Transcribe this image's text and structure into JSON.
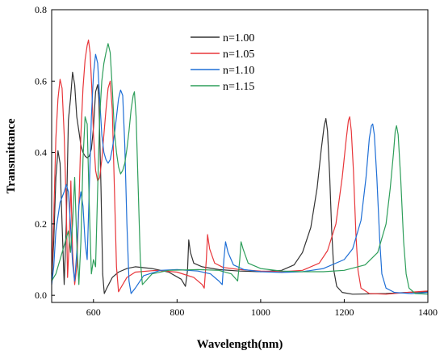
{
  "chart_data": {
    "type": "line",
    "title": "",
    "xlabel": "Wavelength(nm)",
    "ylabel": "Transmittance",
    "xlim": [
      500,
      1400
    ],
    "ylim": [
      -0.02,
      0.8
    ],
    "xticks": [
      600,
      800,
      1000,
      1200,
      1400
    ],
    "yticks": [
      0.0,
      0.2,
      0.4,
      0.6,
      0.8
    ],
    "xtick_labels": [
      "600",
      "800",
      "1000",
      "1200",
      "1400"
    ],
    "ytick_labels": [
      "0.0",
      "0.2",
      "0.4",
      "0.6",
      "0.8"
    ],
    "grid": false,
    "legend_position": "top-center",
    "series": [
      {
        "name": "n=1.00",
        "color": "#333333",
        "points": [
          [
            500,
            0.04
          ],
          [
            505,
            0.15
          ],
          [
            510,
            0.33
          ],
          [
            515,
            0.405
          ],
          [
            520,
            0.37
          ],
          [
            525,
            0.2
          ],
          [
            530,
            0.03
          ],
          [
            535,
            0.2
          ],
          [
            540,
            0.49
          ],
          [
            545,
            0.55
          ],
          [
            550,
            0.625
          ],
          [
            555,
            0.59
          ],
          [
            560,
            0.5
          ],
          [
            565,
            0.46
          ],
          [
            570,
            0.42
          ],
          [
            575,
            0.4
          ],
          [
            580,
            0.39
          ],
          [
            585,
            0.385
          ],
          [
            590,
            0.39
          ],
          [
            595,
            0.41
          ],
          [
            600,
            0.47
          ],
          [
            605,
            0.57
          ],
          [
            610,
            0.59
          ],
          [
            613,
            0.55
          ],
          [
            618,
            0.3
          ],
          [
            622,
            0.06
          ],
          [
            626,
            0.005
          ],
          [
            632,
            0.02
          ],
          [
            645,
            0.05
          ],
          [
            660,
            0.065
          ],
          [
            680,
            0.075
          ],
          [
            700,
            0.08
          ],
          [
            740,
            0.075
          ],
          [
            780,
            0.065
          ],
          [
            810,
            0.045
          ],
          [
            820,
            0.025
          ],
          [
            825,
            0.07
          ],
          [
            828,
            0.155
          ],
          [
            832,
            0.12
          ],
          [
            840,
            0.09
          ],
          [
            860,
            0.08
          ],
          [
            900,
            0.072
          ],
          [
            950,
            0.068
          ],
          [
            1000,
            0.066
          ],
          [
            1050,
            0.07
          ],
          [
            1080,
            0.085
          ],
          [
            1100,
            0.12
          ],
          [
            1120,
            0.19
          ],
          [
            1135,
            0.3
          ],
          [
            1145,
            0.41
          ],
          [
            1152,
            0.475
          ],
          [
            1156,
            0.495
          ],
          [
            1160,
            0.46
          ],
          [
            1165,
            0.34
          ],
          [
            1170,
            0.18
          ],
          [
            1175,
            0.07
          ],
          [
            1182,
            0.025
          ],
          [
            1195,
            0.008
          ],
          [
            1220,
            0.003
          ],
          [
            1300,
            0.005
          ],
          [
            1350,
            0.008
          ],
          [
            1400,
            0.01
          ]
        ]
      },
      {
        "name": "n=1.05",
        "color": "#e8363a",
        "points": [
          [
            500,
            0.06
          ],
          [
            505,
            0.22
          ],
          [
            510,
            0.44
          ],
          [
            515,
            0.55
          ],
          [
            520,
            0.605
          ],
          [
            525,
            0.58
          ],
          [
            530,
            0.45
          ],
          [
            535,
            0.25
          ],
          [
            538,
            0.05
          ],
          [
            542,
            0.15
          ],
          [
            546,
            0.32
          ],
          [
            550,
            0.12
          ],
          [
            555,
            0.03
          ],
          [
            560,
            0.08
          ],
          [
            565,
            0.25
          ],
          [
            570,
            0.45
          ],
          [
            575,
            0.58
          ],
          [
            580,
            0.66
          ],
          [
            585,
            0.7
          ],
          [
            588,
            0.715
          ],
          [
            592,
            0.68
          ],
          [
            596,
            0.58
          ],
          [
            600,
            0.45
          ],
          [
            605,
            0.35
          ],
          [
            610,
            0.32
          ],
          [
            615,
            0.33
          ],
          [
            620,
            0.38
          ],
          [
            625,
            0.45
          ],
          [
            630,
            0.52
          ],
          [
            635,
            0.58
          ],
          [
            640,
            0.6
          ],
          [
            645,
            0.52
          ],
          [
            650,
            0.3
          ],
          [
            655,
            0.08
          ],
          [
            660,
            0.01
          ],
          [
            665,
            0.02
          ],
          [
            680,
            0.05
          ],
          [
            700,
            0.065
          ],
          [
            750,
            0.07
          ],
          [
            800,
            0.065
          ],
          [
            840,
            0.05
          ],
          [
            860,
            0.03
          ],
          [
            865,
            0.02
          ],
          [
            870,
            0.1
          ],
          [
            873,
            0.17
          ],
          [
            878,
            0.13
          ],
          [
            890,
            0.09
          ],
          [
            910,
            0.078
          ],
          [
            950,
            0.072
          ],
          [
            1000,
            0.068
          ],
          [
            1050,
            0.066
          ],
          [
            1100,
            0.07
          ],
          [
            1140,
            0.09
          ],
          [
            1160,
            0.125
          ],
          [
            1180,
            0.2
          ],
          [
            1195,
            0.33
          ],
          [
            1205,
            0.44
          ],
          [
            1210,
            0.49
          ],
          [
            1213,
            0.5
          ],
          [
            1217,
            0.46
          ],
          [
            1222,
            0.35
          ],
          [
            1228,
            0.17
          ],
          [
            1233,
            0.07
          ],
          [
            1240,
            0.02
          ],
          [
            1260,
            0.005
          ],
          [
            1300,
            0.003
          ],
          [
            1350,
            0.008
          ],
          [
            1400,
            0.012
          ]
        ]
      },
      {
        "name": "n=1.10",
        "color": "#1f6fd6",
        "points": [
          [
            500,
            0.03
          ],
          [
            505,
            0.08
          ],
          [
            510,
            0.18
          ],
          [
            520,
            0.26
          ],
          [
            530,
            0.29
          ],
          [
            535,
            0.31
          ],
          [
            540,
            0.29
          ],
          [
            545,
            0.2
          ],
          [
            550,
            0.09
          ],
          [
            555,
            0.04
          ],
          [
            560,
            0.12
          ],
          [
            565,
            0.25
          ],
          [
            570,
            0.29
          ],
          [
            575,
            0.25
          ],
          [
            580,
            0.15
          ],
          [
            585,
            0.1
          ],
          [
            590,
            0.3
          ],
          [
            595,
            0.5
          ],
          [
            600,
            0.62
          ],
          [
            605,
            0.675
          ],
          [
            610,
            0.65
          ],
          [
            615,
            0.55
          ],
          [
            620,
            0.45
          ],
          [
            625,
            0.4
          ],
          [
            630,
            0.38
          ],
          [
            635,
            0.37
          ],
          [
            640,
            0.38
          ],
          [
            645,
            0.41
          ],
          [
            650,
            0.45
          ],
          [
            655,
            0.5
          ],
          [
            660,
            0.55
          ],
          [
            665,
            0.575
          ],
          [
            670,
            0.56
          ],
          [
            675,
            0.42
          ],
          [
            680,
            0.2
          ],
          [
            685,
            0.04
          ],
          [
            690,
            0.005
          ],
          [
            700,
            0.02
          ],
          [
            720,
            0.055
          ],
          [
            760,
            0.07
          ],
          [
            800,
            0.072
          ],
          [
            850,
            0.068
          ],
          [
            880,
            0.06
          ],
          [
            900,
            0.04
          ],
          [
            908,
            0.03
          ],
          [
            912,
            0.1
          ],
          [
            916,
            0.15
          ],
          [
            922,
            0.12
          ],
          [
            935,
            0.085
          ],
          [
            960,
            0.072
          ],
          [
            1000,
            0.066
          ],
          [
            1050,
            0.064
          ],
          [
            1100,
            0.066
          ],
          [
            1150,
            0.075
          ],
          [
            1200,
            0.1
          ],
          [
            1220,
            0.13
          ],
          [
            1240,
            0.21
          ],
          [
            1252,
            0.33
          ],
          [
            1260,
            0.44
          ],
          [
            1265,
            0.475
          ],
          [
            1268,
            0.48
          ],
          [
            1272,
            0.45
          ],
          [
            1278,
            0.33
          ],
          [
            1285,
            0.15
          ],
          [
            1290,
            0.06
          ],
          [
            1300,
            0.02
          ],
          [
            1320,
            0.008
          ],
          [
            1360,
            0.005
          ],
          [
            1400,
            0.008
          ]
        ]
      },
      {
        "name": "n=1.15",
        "color": "#2e9e5a",
        "points": [
          [
            500,
            0.04
          ],
          [
            510,
            0.06
          ],
          [
            520,
            0.1
          ],
          [
            530,
            0.14
          ],
          [
            540,
            0.18
          ],
          [
            545,
            0.12
          ],
          [
            550,
            0.2
          ],
          [
            555,
            0.33
          ],
          [
            560,
            0.15
          ],
          [
            565,
            0.03
          ],
          [
            570,
            0.15
          ],
          [
            575,
            0.38
          ],
          [
            580,
            0.5
          ],
          [
            585,
            0.48
          ],
          [
            590,
            0.25
          ],
          [
            595,
            0.06
          ],
          [
            600,
            0.1
          ],
          [
            605,
            0.08
          ],
          [
            610,
            0.3
          ],
          [
            615,
            0.5
          ],
          [
            620,
            0.6
          ],
          [
            625,
            0.65
          ],
          [
            630,
            0.68
          ],
          [
            635,
            0.705
          ],
          [
            640,
            0.68
          ],
          [
            645,
            0.58
          ],
          [
            650,
            0.46
          ],
          [
            655,
            0.4
          ],
          [
            660,
            0.36
          ],
          [
            665,
            0.34
          ],
          [
            670,
            0.35
          ],
          [
            675,
            0.37
          ],
          [
            680,
            0.41
          ],
          [
            685,
            0.46
          ],
          [
            690,
            0.52
          ],
          [
            695,
            0.56
          ],
          [
            698,
            0.57
          ],
          [
            702,
            0.5
          ],
          [
            707,
            0.3
          ],
          [
            712,
            0.1
          ],
          [
            717,
            0.03
          ],
          [
            725,
            0.04
          ],
          [
            740,
            0.06
          ],
          [
            780,
            0.07
          ],
          [
            850,
            0.072
          ],
          [
            900,
            0.07
          ],
          [
            930,
            0.06
          ],
          [
            945,
            0.04
          ],
          [
            950,
            0.1
          ],
          [
            953,
            0.15
          ],
          [
            958,
            0.13
          ],
          [
            970,
            0.09
          ],
          [
            1000,
            0.075
          ],
          [
            1050,
            0.068
          ],
          [
            1100,
            0.066
          ],
          [
            1150,
            0.066
          ],
          [
            1200,
            0.07
          ],
          [
            1250,
            0.085
          ],
          [
            1280,
            0.12
          ],
          [
            1300,
            0.2
          ],
          [
            1310,
            0.3
          ],
          [
            1318,
            0.4
          ],
          [
            1322,
            0.46
          ],
          [
            1325,
            0.475
          ],
          [
            1329,
            0.45
          ],
          [
            1335,
            0.33
          ],
          [
            1342,
            0.15
          ],
          [
            1348,
            0.06
          ],
          [
            1355,
            0.02
          ],
          [
            1370,
            0.005
          ],
          [
            1400,
            0.003
          ]
        ]
      }
    ]
  }
}
